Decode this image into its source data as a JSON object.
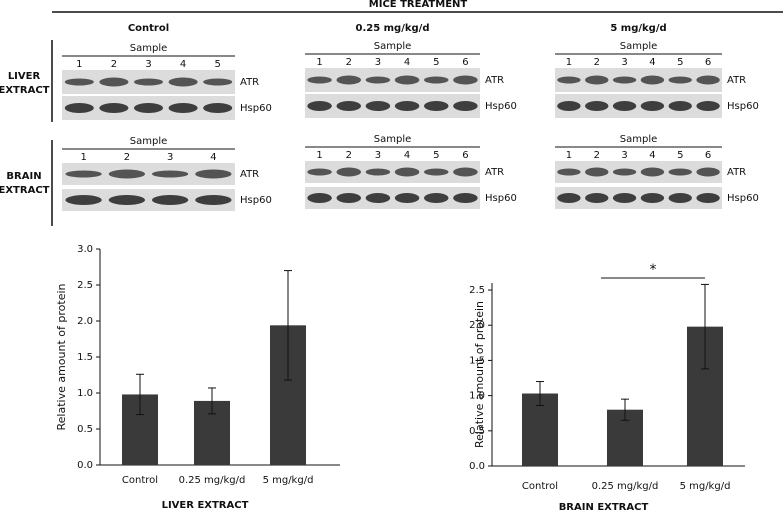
{
  "blots": {
    "header": "MICE TREATMENT",
    "columns": [
      "Control",
      "0.25 mg/kg/d",
      "5 mg/kg/d"
    ],
    "rows": [
      {
        "label": [
          "LIVER",
          "EXTRACT"
        ],
        "panels": [
          {
            "sample": "Sample",
            "lanes": [
              1,
              2,
              3,
              4,
              5
            ],
            "bands": [
              "ATR",
              "Hsp60"
            ]
          },
          {
            "sample": "Sample",
            "lanes": [
              1,
              2,
              3,
              4,
              5,
              6
            ],
            "bands": [
              "ATR",
              "Hsp60"
            ]
          },
          {
            "sample": "Sample",
            "lanes": [
              1,
              2,
              3,
              4,
              5,
              6
            ],
            "bands": [
              "ATR",
              "Hsp60"
            ]
          }
        ]
      },
      {
        "label": [
          "BRAIN",
          "EXTRACT"
        ],
        "panels": [
          {
            "sample": "Sample",
            "lanes": [
              1,
              2,
              3,
              4
            ],
            "bands": [
              "ATR",
              "Hsp60"
            ]
          },
          {
            "sample": "Sample",
            "lanes": [
              1,
              2,
              3,
              4,
              5,
              6
            ],
            "bands": [
              "ATR",
              "Hsp60"
            ]
          },
          {
            "sample": "Sample",
            "lanes": [
              1,
              2,
              3,
              4,
              5,
              6
            ],
            "bands": [
              "ATR",
              "Hsp60"
            ]
          }
        ]
      }
    ]
  },
  "chart_data": [
    {
      "type": "bar",
      "xlabel": "LIVER EXTRACT",
      "ylabel": "Relative amount of protein",
      "categories": [
        "Control",
        "0.25 mg/kg/d",
        "5 mg/kg/d"
      ],
      "values": [
        0.98,
        0.89,
        1.94
      ],
      "errors": [
        0.28,
        0.18,
        0.76
      ],
      "color": "#3a3a3a",
      "ylim": [
        0,
        3.0
      ],
      "yticks": [
        {
          "value": 0,
          "label": "0.0"
        },
        0.5,
        {
          "value": 1,
          "label": "1.0"
        },
        1.5,
        {
          "value": 2,
          "label": "2.0"
        },
        2.5,
        {
          "value": 3,
          "label": "3.0"
        }
      ]
    },
    {
      "type": "bar",
      "xlabel": "BRAIN EXTRACT",
      "ylabel": "Relative amount of protein",
      "categories": [
        "Control",
        "0.25 mg/kg/d",
        "5 mg/kg/d"
      ],
      "values": [
        1.03,
        0.8,
        1.98
      ],
      "errors": [
        0.17,
        0.15,
        0.6
      ],
      "color": "#3a3a3a",
      "ylim": [
        0,
        2.6
      ],
      "yticks": [
        {
          "value": 0,
          "label": "0.0"
        },
        0.5,
        {
          "value": 1,
          "label": "1.0"
        },
        1.5,
        {
          "value": 2,
          "label": "2.0"
        },
        2.5
      ],
      "annotation": "*"
    }
  ]
}
